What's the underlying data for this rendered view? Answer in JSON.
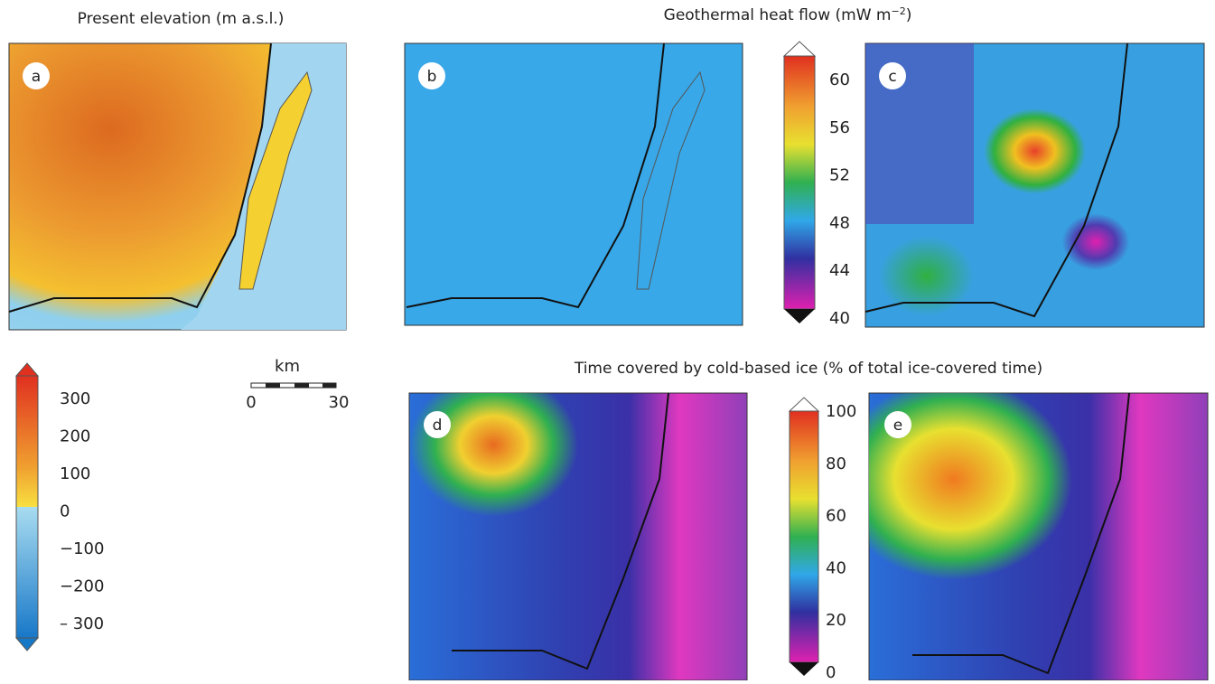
{
  "titles": {
    "elevation": "Present elevation (m a.s.l.)",
    "heat_flow": [
      "Geothermal heat flow (mW m",
      "−2",
      ")"
    ],
    "cold_ice": "Time covered by cold-based ice (% of total ice-covered time)"
  },
  "panels": [
    "a",
    "b",
    "c",
    "d",
    "e"
  ],
  "colorbars": {
    "elevation": [
      "300",
      "200",
      "100",
      "0",
      "−100",
      "−200",
      "– 300"
    ],
    "heat_flow": [
      "60",
      "56",
      "52",
      "48",
      "44",
      "40"
    ],
    "cold_ice": [
      "100",
      "80",
      "60",
      "40",
      "20",
      "0"
    ]
  },
  "scale_bar": {
    "unit": "km",
    "start": "0",
    "end": "30"
  }
}
